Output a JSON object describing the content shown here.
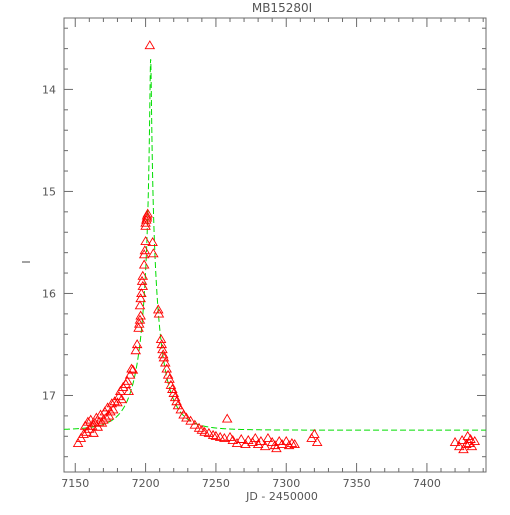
{
  "chart_data": {
    "type": "scatter",
    "title": "MB15280I",
    "xlabel": "JD - 2450000",
    "ylabel": "I",
    "xlim": [
      7142,
      7442
    ],
    "ylim": [
      13.3,
      17.75
    ],
    "y_inverted": true,
    "x_ticks": [
      "7150",
      "7200",
      "7250",
      "7300",
      "7350",
      "7400"
    ],
    "y_ticks": [
      "14",
      "15",
      "16",
      "17"
    ],
    "grid": false,
    "colors": {
      "data": "#ff0000",
      "model": "#00dd00",
      "axes": "#6b6b6b",
      "text": "#555555"
    },
    "series": [
      {
        "kind": "observations",
        "marker": "triangle-open",
        "points": [
          [
            7152,
            17.47
          ],
          [
            7154,
            17.42
          ],
          [
            7156,
            17.38
          ],
          [
            7157,
            17.3
          ],
          [
            7158,
            17.36
          ],
          [
            7159,
            17.26
          ],
          [
            7160,
            17.33
          ],
          [
            7161,
            17.24
          ],
          [
            7162,
            17.3
          ],
          [
            7163,
            17.37
          ],
          [
            7164,
            17.27
          ],
          [
            7165,
            17.22
          ],
          [
            7166,
            17.31
          ],
          [
            7167,
            17.26
          ],
          [
            7168,
            17.19
          ],
          [
            7169,
            17.27
          ],
          [
            7170,
            17.24
          ],
          [
            7171,
            17.16
          ],
          [
            7172,
            17.22
          ],
          [
            7173,
            17.12
          ],
          [
            7174,
            17.2
          ],
          [
            7175,
            17.16
          ],
          [
            7176,
            17.08
          ],
          [
            7177,
            17.14
          ],
          [
            7178,
            17.06
          ],
          [
            7180,
            17.07
          ],
          [
            7181,
            17.01
          ],
          [
            7182,
            16.96
          ],
          [
            7183,
            17.04
          ],
          [
            7184,
            16.92
          ],
          [
            7186,
            16.89
          ],
          [
            7187,
            16.86
          ],
          [
            7188,
            16.96
          ],
          [
            7189,
            16.8
          ],
          [
            7190,
            16.74
          ],
          [
            7191,
            16.75
          ],
          [
            7193,
            16.56
          ],
          [
            7194,
            16.5
          ],
          [
            7195,
            16.34
          ],
          [
            7195.5,
            16.3
          ],
          [
            7196,
            16.26
          ],
          [
            7196.5,
            16.22
          ],
          [
            7196,
            16.12
          ],
          [
            7196.5,
            16.05
          ],
          [
            7197,
            16.0
          ],
          [
            7197.5,
            15.88
          ],
          [
            7198,
            15.93
          ],
          [
            7198,
            15.83
          ],
          [
            7199,
            15.72
          ],
          [
            7199,
            15.62
          ],
          [
            7199.5,
            15.58
          ],
          [
            7200,
            15.49
          ],
          [
            7200,
            15.34
          ],
          [
            7200,
            15.31
          ],
          [
            7200.5,
            15.28
          ],
          [
            7201,
            15.26
          ],
          [
            7201,
            15.24
          ],
          [
            7201.5,
            15.22
          ],
          [
            7203,
            13.57
          ],
          [
            7205,
            15.5
          ],
          [
            7205.5,
            15.61
          ],
          [
            7209,
            16.16
          ],
          [
            7209.5,
            16.2
          ],
          [
            7211,
            16.45
          ],
          [
            7211.5,
            16.5
          ],
          [
            7212,
            16.55
          ],
          [
            7212.5,
            16.6
          ],
          [
            7213,
            16.63
          ],
          [
            7214,
            16.68
          ],
          [
            7215,
            16.74
          ],
          [
            7216,
            16.8
          ],
          [
            7217,
            16.84
          ],
          [
            7218,
            16.9
          ],
          [
            7219,
            16.94
          ],
          [
            7220,
            16.98
          ],
          [
            7221,
            17.02
          ],
          [
            7222,
            17.06
          ],
          [
            7223,
            17.1
          ],
          [
            7225,
            17.14
          ],
          [
            7227,
            17.19
          ],
          [
            7229,
            17.22
          ],
          [
            7232,
            17.25
          ],
          [
            7235,
            17.29
          ],
          [
            7238,
            17.32
          ],
          [
            7240,
            17.34
          ],
          [
            7242,
            17.36
          ],
          [
            7245,
            17.37
          ],
          [
            7248,
            17.39
          ],
          [
            7250,
            17.4
          ],
          [
            7253,
            17.41
          ],
          [
            7256,
            17.42
          ],
          [
            7258,
            17.23
          ],
          [
            7260,
            17.41
          ],
          [
            7262,
            17.44
          ],
          [
            7265,
            17.47
          ],
          [
            7268,
            17.43
          ],
          [
            7271,
            17.48
          ],
          [
            7273,
            17.44
          ],
          [
            7276,
            17.46
          ],
          [
            7278,
            17.42
          ],
          [
            7280,
            17.48
          ],
          [
            7282,
            17.45
          ],
          [
            7285,
            17.5
          ],
          [
            7287,
            17.42
          ],
          [
            7290,
            17.46
          ],
          [
            7292,
            17.49
          ],
          [
            7293,
            17.52
          ],
          [
            7295,
            17.45
          ],
          [
            7297,
            17.48
          ],
          [
            7300,
            17.45
          ],
          [
            7302,
            17.49
          ],
          [
            7304,
            17.47
          ],
          [
            7306,
            17.48
          ],
          [
            7318,
            17.42
          ],
          [
            7320,
            17.38
          ],
          [
            7322,
            17.46
          ],
          [
            7420,
            17.46
          ],
          [
            7423,
            17.5
          ],
          [
            7425,
            17.44
          ],
          [
            7426,
            17.53
          ],
          [
            7428,
            17.48
          ],
          [
            7429,
            17.4
          ],
          [
            7430,
            17.47
          ],
          [
            7431,
            17.43
          ],
          [
            7432,
            17.5
          ],
          [
            7434,
            17.45
          ]
        ]
      },
      {
        "kind": "model",
        "style": "dashed",
        "baseline": 17.34,
        "t0": 7203.6,
        "u0": 0.03,
        "tE": 17.0,
        "blend_fraction": 0.85
      }
    ]
  }
}
